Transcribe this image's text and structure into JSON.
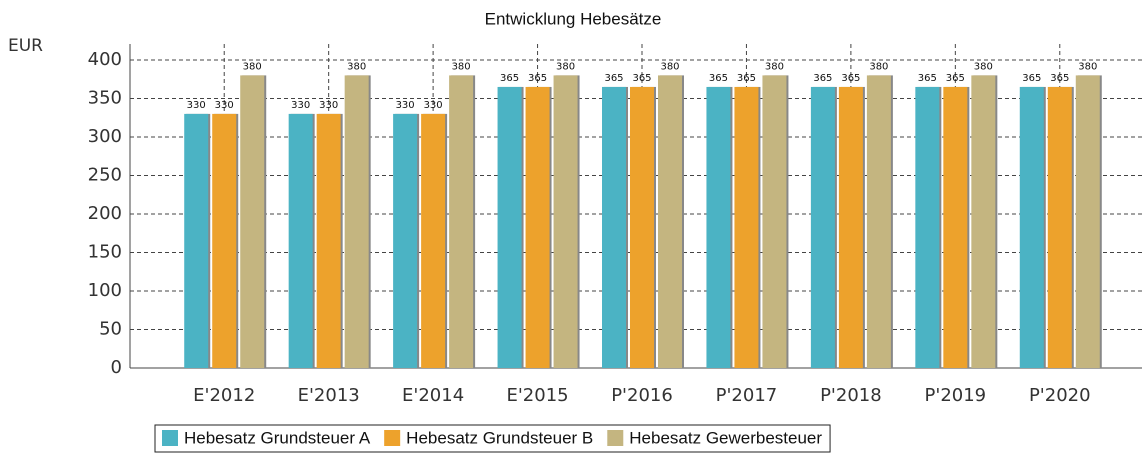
{
  "chart_data": {
    "type": "bar",
    "title": "Entwicklung Hebesätze",
    "y_label": "EUR",
    "categories": [
      "E'2012",
      "E'2013",
      "E'2014",
      "E'2015",
      "P'2016",
      "P'2017",
      "P'2018",
      "P'2019",
      "P'2020"
    ],
    "series": [
      {
        "name": "Hebesatz Grundsteuer A",
        "color": "#4bb3c4",
        "values": [
          330,
          330,
          330,
          365,
          365,
          365,
          365,
          365,
          365
        ]
      },
      {
        "name": "Hebesatz Grundsteuer B",
        "color": "#eda22c",
        "values": [
          330,
          330,
          330,
          365,
          365,
          365,
          365,
          365,
          365
        ]
      },
      {
        "name": "Hebesatz Gewerbesteuer",
        "color": "#c4b580",
        "values": [
          380,
          380,
          380,
          380,
          380,
          380,
          380,
          380,
          380
        ]
      }
    ],
    "ylim": [
      0,
      400
    ],
    "yticks": [
      0,
      50,
      100,
      150,
      200,
      250,
      300,
      350,
      400
    ],
    "grid": true,
    "legend": "bottom"
  }
}
